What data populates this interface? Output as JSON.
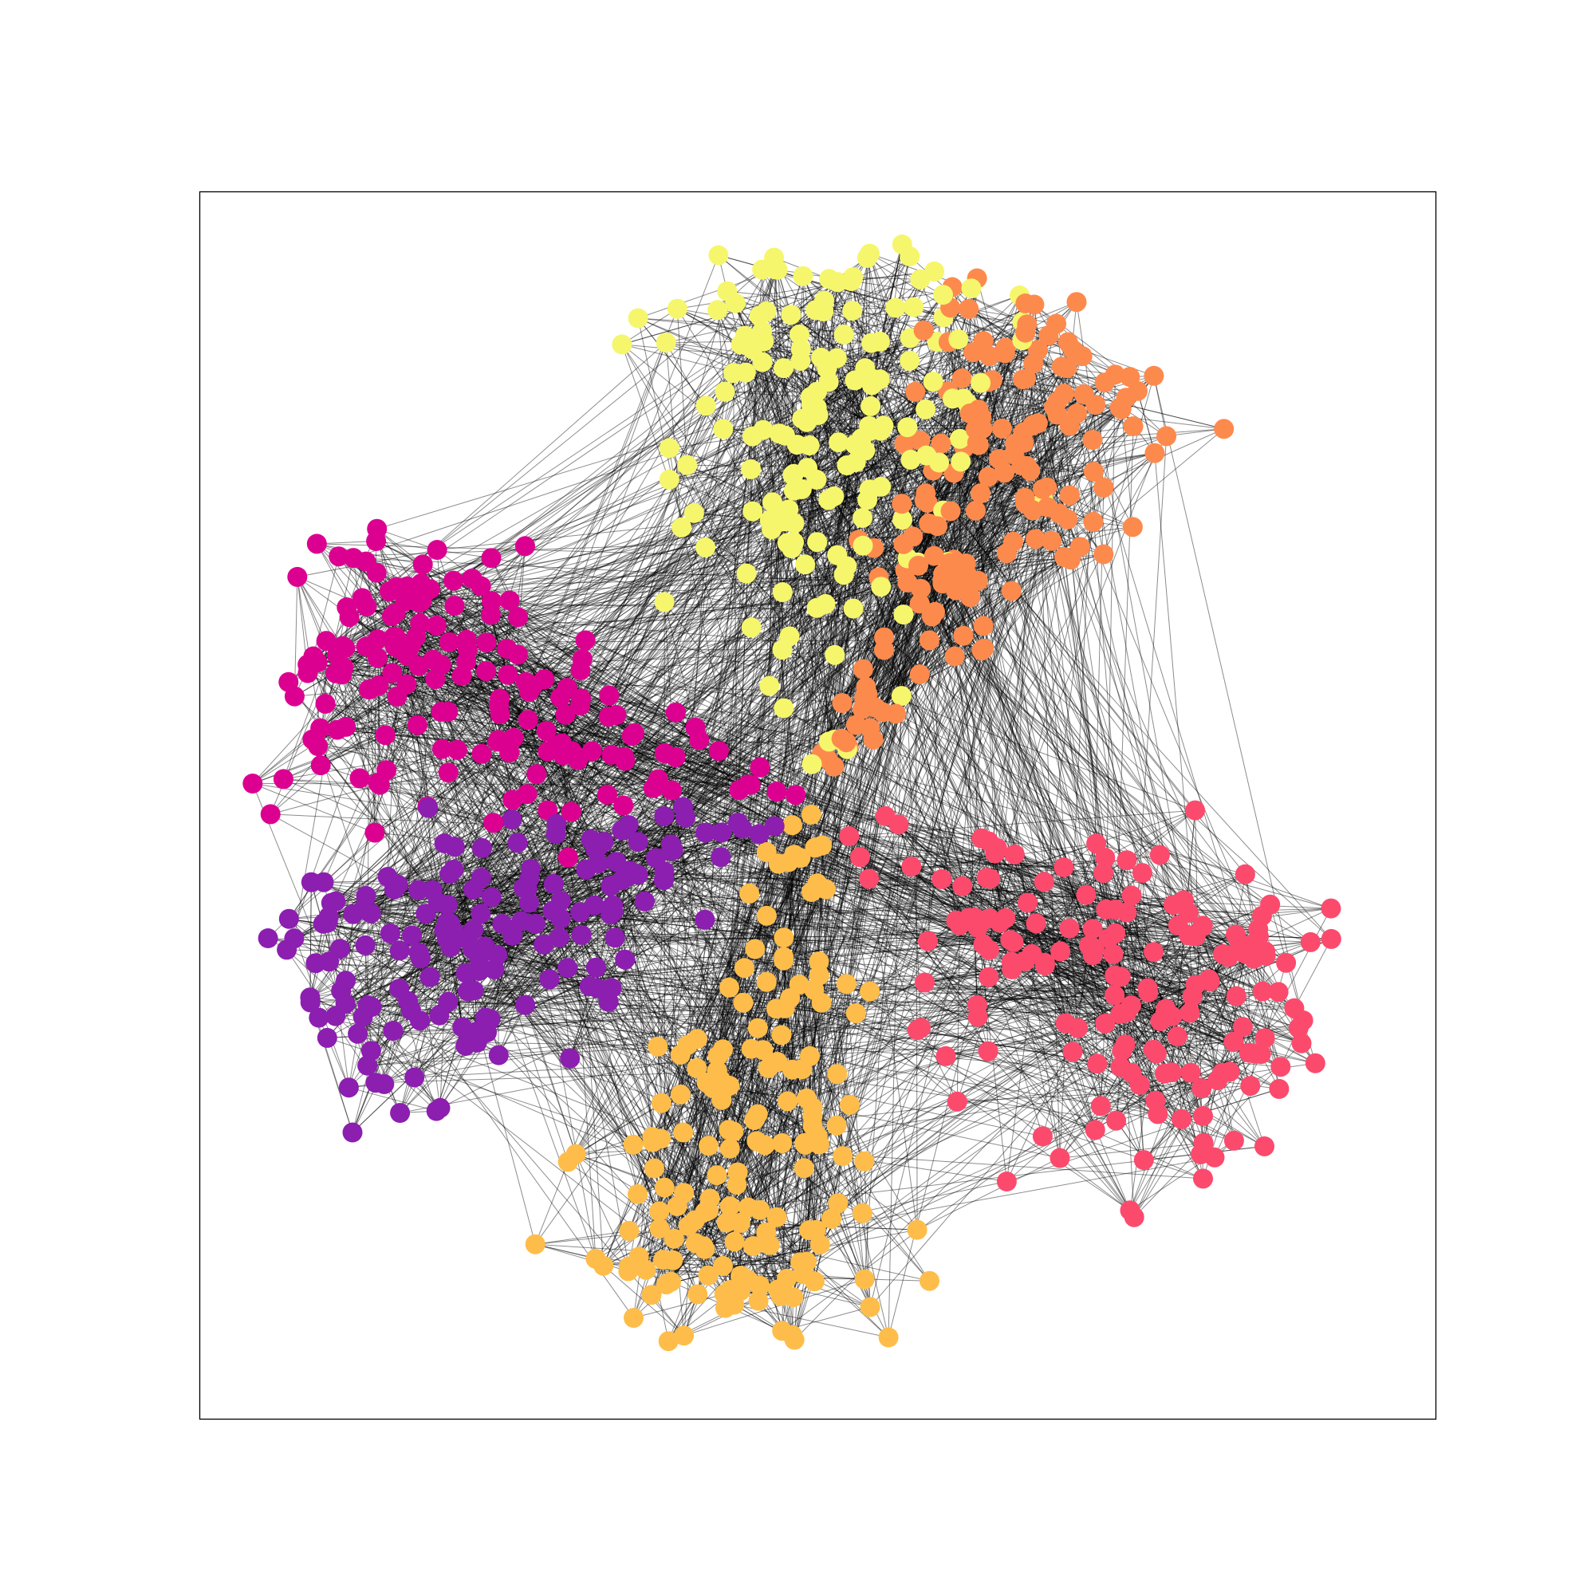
{
  "diagram": {
    "type": "network",
    "communities": [
      {
        "color": "#fc4a6c"
      },
      {
        "color": "#febd4a"
      },
      {
        "color": "#8c1eb0"
      },
      {
        "color": "#dc0090"
      },
      {
        "color": "#f6f66c"
      },
      {
        "color": "#fd8a4d"
      }
    ]
  }
}
